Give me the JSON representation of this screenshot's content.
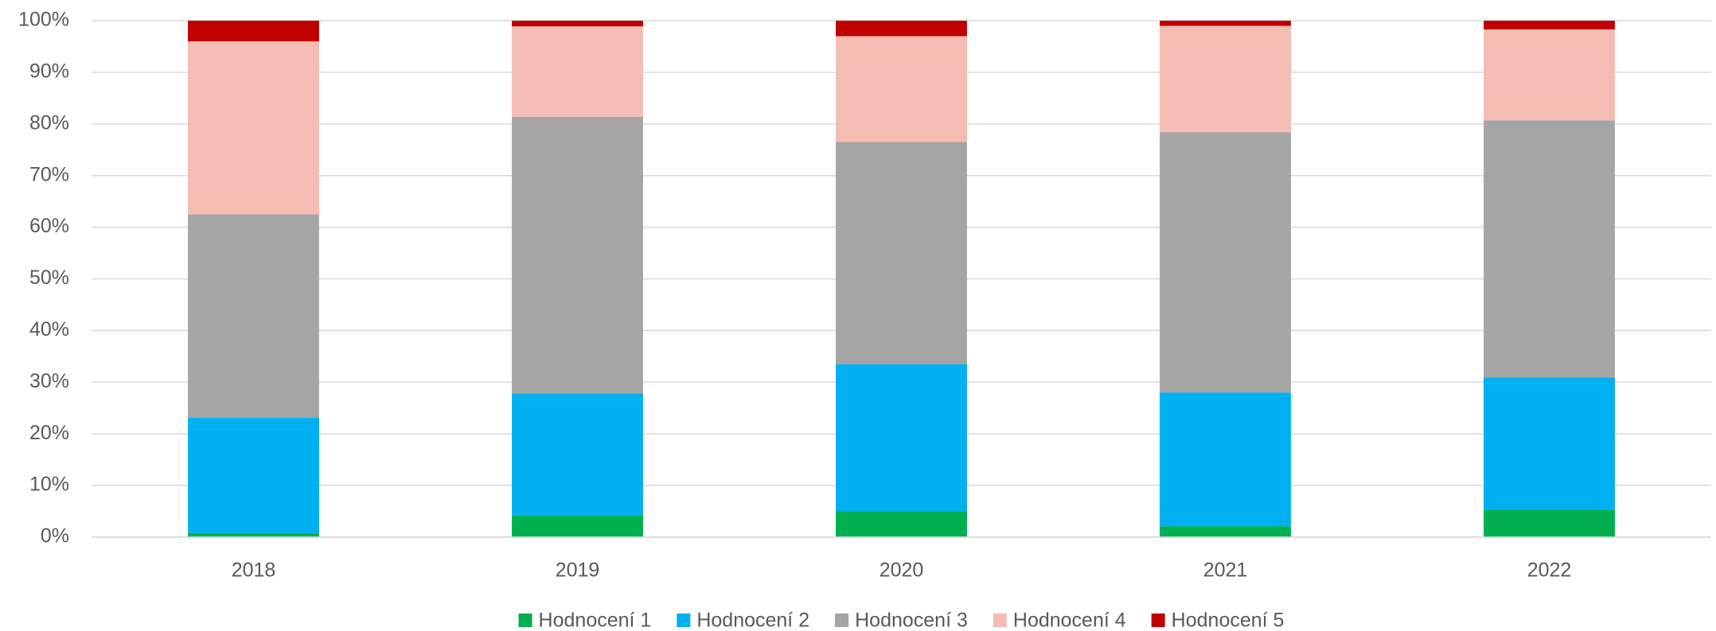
{
  "chart_data": {
    "type": "stacked_bar",
    "categories": [
      "2018",
      "2019",
      "2020",
      "2021",
      "2022"
    ],
    "series": [
      {
        "name": "Hodnocení 1",
        "color": "#00b050",
        "values": [
          0.8,
          4.2,
          5.0,
          2.1,
          5.3
        ]
      },
      {
        "name": "Hodnocení 2",
        "color": "#00b0f0",
        "values": [
          22.3,
          23.6,
          28.5,
          25.9,
          25.6
        ]
      },
      {
        "name": "Hodnocení 3",
        "color": "#a5a5a5",
        "values": [
          39.4,
          53.6,
          43.0,
          50.4,
          49.8
        ]
      },
      {
        "name": "Hodnocení 4",
        "color": "#f4bcb2",
        "values": [
          33.5,
          17.5,
          20.5,
          20.6,
          17.6
        ]
      },
      {
        "name": "Hodnocení 5",
        "color": "#c00000",
        "values": [
          4.0,
          1.1,
          3.0,
          1.0,
          1.7
        ]
      }
    ],
    "ylim": [
      0,
      100
    ],
    "yticks": [
      {
        "value": 0,
        "label": "0%"
      },
      {
        "value": 10,
        "label": "10%"
      },
      {
        "value": 20,
        "label": "20%"
      },
      {
        "value": 30,
        "label": "30%"
      },
      {
        "value": 40,
        "label": "40%"
      },
      {
        "value": 50,
        "label": "50%"
      },
      {
        "value": 60,
        "label": "60%"
      },
      {
        "value": 70,
        "label": "70%"
      },
      {
        "value": 80,
        "label": "80%"
      },
      {
        "value": 90,
        "label": "90%"
      },
      {
        "value": 100,
        "label": "100%"
      }
    ],
    "grid": true,
    "legend": "bottom"
  }
}
